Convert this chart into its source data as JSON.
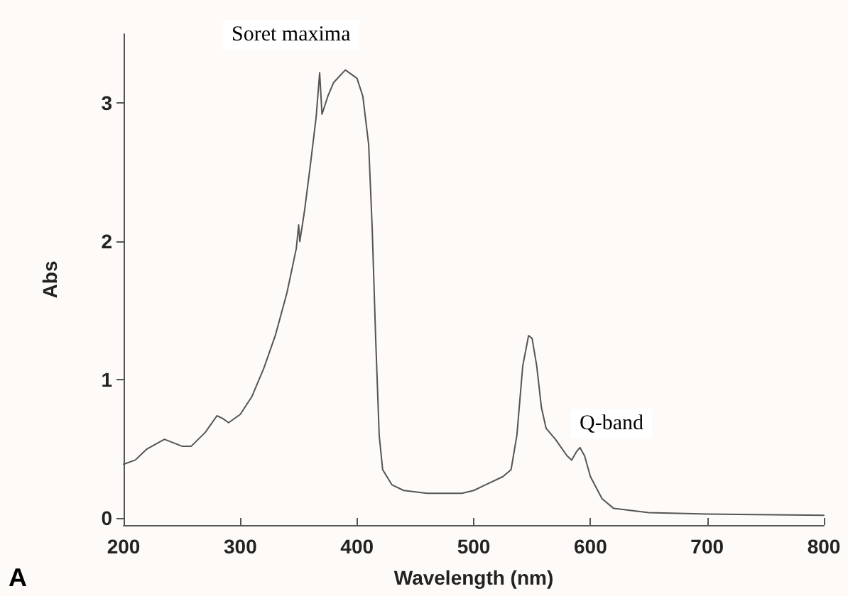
{
  "chart_data": {
    "type": "line",
    "xlabel": "Wavelength (nm)",
    "ylabel": "Abs",
    "xlim": [
      200,
      800
    ],
    "xticks": [
      200,
      300,
      400,
      500,
      600,
      700,
      800
    ],
    "ylim": [
      -0.05,
      3.5
    ],
    "yticks": [
      0,
      1,
      2,
      3
    ],
    "grid": false,
    "marker": "none",
    "line_style": "solid",
    "series": [
      {
        "color": "#555555",
        "x": [
          200,
          210,
          220,
          235,
          250,
          258,
          270,
          280,
          285,
          290,
          300,
          310,
          320,
          330,
          340,
          348,
          350,
          351,
          355,
          360,
          365,
          368,
          370,
          375,
          380,
          390,
          400,
          405,
          410,
          413,
          416,
          419,
          422,
          430,
          440,
          460,
          490,
          500,
          510,
          525,
          532,
          537,
          542,
          547,
          550,
          554,
          558,
          562,
          570,
          580,
          584,
          588,
          591,
          595,
          600,
          610,
          620,
          650,
          700,
          800
        ],
        "values": [
          0.39,
          0.42,
          0.5,
          0.57,
          0.52,
          0.52,
          0.62,
          0.74,
          0.72,
          0.69,
          0.75,
          0.88,
          1.08,
          1.32,
          1.63,
          1.95,
          2.12,
          2.0,
          2.22,
          2.55,
          2.9,
          3.22,
          2.92,
          3.05,
          3.15,
          3.24,
          3.18,
          3.05,
          2.7,
          2.1,
          1.3,
          0.6,
          0.35,
          0.24,
          0.2,
          0.18,
          0.18,
          0.2,
          0.24,
          0.3,
          0.35,
          0.6,
          1.1,
          1.32,
          1.3,
          1.1,
          0.8,
          0.65,
          0.57,
          0.45,
          0.42,
          0.48,
          0.51,
          0.45,
          0.3,
          0.14,
          0.07,
          0.04,
          0.03,
          0.02
        ]
      }
    ],
    "annotations": [
      "Soret maxima",
      "Q-band",
      "A"
    ]
  }
}
